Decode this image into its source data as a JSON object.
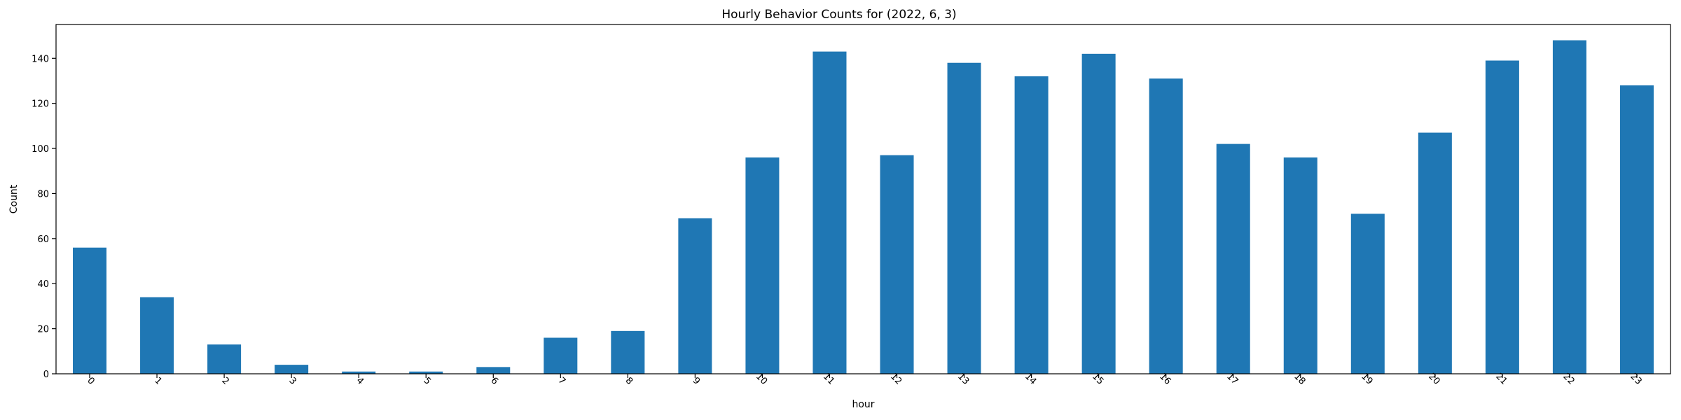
{
  "chart_data": {
    "type": "bar",
    "title": "Hourly Behavior Counts for (2022, 6, 3)",
    "xlabel": "hour",
    "ylabel": "Count",
    "categories": [
      "0",
      "1",
      "2",
      "3",
      "4",
      "5",
      "6",
      "7",
      "8",
      "9",
      "10",
      "11",
      "12",
      "13",
      "14",
      "15",
      "16",
      "17",
      "18",
      "19",
      "20",
      "21",
      "22",
      "23"
    ],
    "values": [
      56,
      34,
      13,
      4,
      1,
      1,
      3,
      16,
      19,
      69,
      96,
      143,
      97,
      138,
      132,
      142,
      131,
      102,
      96,
      71,
      107,
      139,
      148,
      128
    ],
    "ylim": [
      0,
      155
    ],
    "yticks": [
      0,
      20,
      40,
      60,
      80,
      100,
      120,
      140
    ],
    "x_tick_rotation_deg": 45,
    "grid": false,
    "legend": "none",
    "bar_color": "#1f77b4"
  }
}
